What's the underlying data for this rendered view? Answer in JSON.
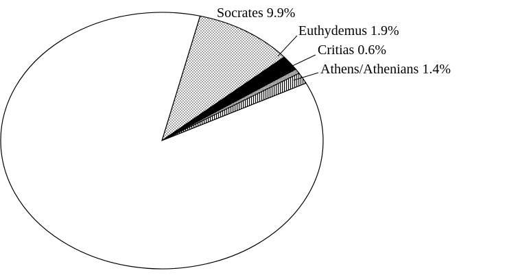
{
  "chart_data": {
    "type": "pie",
    "categories": [
      "Socrates",
      "Euthydemus",
      "Critias",
      "Athens/Athenians",
      null
    ],
    "values": [
      9.9,
      1.9,
      0.6,
      1.4,
      86.2
    ],
    "value_labels": [
      "9.9%",
      "1.9%",
      "0.6%",
      "1.4%",
      null
    ],
    "fills": [
      "dotted",
      "black",
      "gray",
      "hatched",
      "white"
    ]
  }
}
